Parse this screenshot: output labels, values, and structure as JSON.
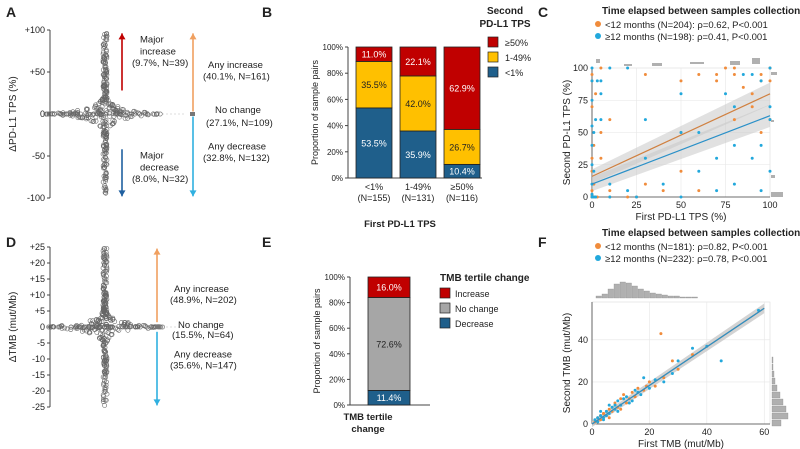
{
  "colors": {
    "red": "#c00000",
    "yellow": "#ffc000",
    "blue": "#1f5f8b",
    "gray": "#a6a6a6",
    "orange": "#f08c3c",
    "cyan": "#22a8dc",
    "dark_red_arrow": "#c00000",
    "orange_arrow": "#f0a060",
    "cyan_arrow": "#30b0e0",
    "dark_blue_arrow": "#2060a0",
    "band": "#c8c8c8"
  },
  "chart_data": [
    {
      "panel": "A",
      "type": "scatter",
      "subtype": "beeswarm",
      "ylabel": "ΔPD-L1 TPS (%)",
      "yticks": [
        "+100",
        "+50",
        "0",
        "-50",
        "-100"
      ],
      "ylim": [
        -100,
        100
      ],
      "annotations": [
        {
          "text": "Major increase",
          "detail": "(9.7%, N=39)",
          "range": [
            20,
            100
          ],
          "arrow": "dark_red_arrow"
        },
        {
          "text": "Major decrease",
          "detail": "(8.0%, N=32)",
          "range": [
            -100,
            -40
          ],
          "arrow": "dark_blue_arrow"
        },
        {
          "text": "Any increase",
          "detail": "(40.1%, N=161)",
          "range": [
            1,
            100
          ],
          "arrow": "orange_arrow"
        },
        {
          "text": "No change",
          "detail": "(27.1%, N=109)",
          "value": 0
        },
        {
          "text": "Any decrease",
          "detail": "(32.8%, N=132)",
          "range": [
            -100,
            -1
          ],
          "arrow": "cyan_arrow"
        }
      ]
    },
    {
      "panel": "B",
      "type": "bar",
      "stacked": true,
      "xlabel": "First PD-L1 TPS",
      "ylabel": "Proportion of sample pairs",
      "yticks": [
        "0%",
        "20%",
        "40%",
        "60%",
        "80%",
        "100%"
      ],
      "ylim": [
        0,
        100
      ],
      "categories": [
        "<1%",
        "1-49%",
        "≥50%"
      ],
      "category_n": [
        "(N=155)",
        "(N=131)",
        "(N=116)"
      ],
      "legend_title": "Second PD-L1 TPS",
      "series": [
        {
          "name": "<1%",
          "color": "blue",
          "values": [
            53.5,
            35.9,
            10.4
          ],
          "labels": [
            "53.5%",
            "35.9%",
            "10.4%"
          ]
        },
        {
          "name": "1-49%",
          "color": "yellow",
          "values": [
            35.5,
            42.0,
            26.7
          ],
          "labels": [
            "35.5%",
            "42.0%",
            "26.7%"
          ]
        },
        {
          "name": "≥50%",
          "color": "red",
          "values": [
            11.0,
            22.1,
            62.9
          ],
          "labels": [
            "11.0%",
            "22.1%",
            "62.9%"
          ]
        }
      ]
    },
    {
      "panel": "C",
      "type": "scatter",
      "title": "Time elapsed between samples collection",
      "xlabel": "First PD-L1 TPS (%)",
      "ylabel": "Second PD-L1 TPS (%)",
      "xticks": [
        "0",
        "25",
        "50",
        "75",
        "100"
      ],
      "yticks": [
        "0",
        "25",
        "50",
        "75",
        "100"
      ],
      "xlim": [
        0,
        100
      ],
      "ylim": [
        0,
        100
      ],
      "grid": true,
      "series": [
        {
          "name": "<12 months (N=204): ρ=0.62, P<0.001",
          "color": "orange",
          "fit": [
            [
              0,
              16
            ],
            [
              100,
              80
            ]
          ],
          "x": [
            0,
            0,
            0,
            1,
            2,
            1,
            0,
            5,
            5,
            10,
            10,
            20,
            25,
            30,
            40,
            50,
            50,
            60,
            70,
            80,
            80,
            90,
            95,
            95,
            100,
            100,
            100,
            0,
            0,
            5,
            2,
            60,
            75,
            85,
            90,
            1,
            0,
            3,
            0,
            10,
            30,
            70,
            95,
            100,
            50,
            80,
            0,
            0
          ],
          "y": [
            0,
            1,
            5,
            0,
            0,
            10,
            20,
            30,
            50,
            5,
            0,
            0,
            0,
            10,
            5,
            20,
            50,
            5,
            90,
            60,
            95,
            80,
            90,
            95,
            100,
            90,
            60,
            70,
            95,
            100,
            80,
            95,
            100,
            85,
            70,
            40,
            2,
            0,
            90,
            60,
            95,
            95,
            50,
            100,
            90,
            100,
            30,
            0
          ]
        },
        {
          "name": "≥12 months (N=198): ρ=0.41, P<0.001",
          "color": "cyan",
          "fit": [
            [
              0,
              10
            ],
            [
              100,
              63
            ]
          ],
          "x": [
            0,
            0,
            0,
            1,
            2,
            1,
            0,
            5,
            5,
            10,
            10,
            20,
            25,
            30,
            40,
            50,
            50,
            60,
            70,
            80,
            80,
            90,
            95,
            95,
            100,
            100,
            100,
            0,
            0,
            5,
            2,
            60,
            75,
            85,
            90,
            1,
            0,
            3,
            0,
            10,
            30,
            70,
            95,
            100,
            50,
            80,
            0,
            20
          ],
          "y": [
            0,
            2,
            10,
            0,
            0,
            20,
            40,
            60,
            80,
            10,
            0,
            5,
            0,
            30,
            10,
            50,
            80,
            20,
            30,
            70,
            10,
            95,
            40,
            5,
            100,
            70,
            20,
            100,
            90,
            90,
            60,
            50,
            80,
            95,
            30,
            50,
            25,
            90,
            75,
            100,
            60,
            5,
            90,
            60,
            0,
            40,
            55,
            100
          ]
        }
      ]
    },
    {
      "panel": "D",
      "type": "scatter",
      "subtype": "beeswarm",
      "ylabel": "ΔTMB (mut/Mb)",
      "yticks": [
        "+25",
        "+20",
        "+15",
        "+10",
        "+5",
        "0",
        "-5",
        "-10",
        "-15",
        "-20",
        "-25"
      ],
      "ylim": [
        -25,
        25
      ],
      "annotations": [
        {
          "text": "Any increase",
          "detail": "(48.9%, N=202)",
          "range": [
            1,
            25
          ],
          "arrow": "orange_arrow"
        },
        {
          "text": "No change",
          "detail": "(15.5%, N=64)",
          "value": 0
        },
        {
          "text": "Any decrease",
          "detail": "(35.6%, N=147)",
          "range": [
            -25,
            -1
          ],
          "arrow": "cyan_arrow"
        }
      ]
    },
    {
      "panel": "E",
      "type": "bar",
      "stacked": true,
      "xlabel": "TMB tertile change",
      "ylabel": "Proportion of sample pairs",
      "yticks": [
        "0%",
        "20%",
        "40%",
        "60%",
        "80%",
        "100%"
      ],
      "ylim": [
        0,
        100
      ],
      "legend_title": "TMB tertile change",
      "series": [
        {
          "name": "Decrease",
          "color": "blue",
          "values": [
            11.4
          ],
          "labels": [
            "11.4%"
          ]
        },
        {
          "name": "No change",
          "color": "gray",
          "values": [
            72.6
          ],
          "labels": [
            "72.6%"
          ]
        },
        {
          "name": "Increase",
          "color": "red",
          "values": [
            16.0
          ],
          "labels": [
            "16.0%"
          ]
        }
      ]
    },
    {
      "panel": "F",
      "type": "scatter",
      "title": "Time elapsed between samples collection",
      "xlabel": "First TMB (mut/Mb)",
      "ylabel": "Second TMB (mut/Mb)",
      "xticks": [
        "0",
        "20",
        "40",
        "60"
      ],
      "yticks": [
        "0",
        "20",
        "40"
      ],
      "xlim": [
        0,
        62
      ],
      "ylim": [
        0,
        58
      ],
      "grid": true,
      "series": [
        {
          "name": "<12 months (N=181): ρ=0.82, P<0.001",
          "color": "orange",
          "fit": [
            [
              0,
              0
            ],
            [
              60,
              55
            ]
          ],
          "x": [
            1,
            2,
            3,
            4,
            5,
            6,
            7,
            8,
            9,
            10,
            12,
            14,
            15,
            18,
            20,
            22,
            25,
            28,
            30,
            35,
            2,
            3,
            5,
            6,
            8,
            10,
            4,
            7,
            11,
            13,
            16,
            19,
            24
          ],
          "y": [
            1,
            3,
            2,
            5,
            4,
            7,
            6,
            9,
            8,
            12,
            10,
            15,
            13,
            16,
            20,
            18,
            22,
            30,
            26,
            33,
            1,
            4,
            6,
            3,
            10,
            7,
            5,
            8,
            14,
            12,
            17,
            18,
            43
          ]
        },
        {
          "name": "≥12 months (N=232): ρ=0.78, P<0.001",
          "color": "cyan",
          "fit": [
            [
              0,
              0
            ],
            [
              60,
              55
            ]
          ],
          "x": [
            1,
            2,
            3,
            4,
            5,
            6,
            7,
            8,
            9,
            10,
            12,
            14,
            15,
            17,
            20,
            22,
            25,
            28,
            30,
            40,
            3,
            4,
            6,
            9,
            11,
            13,
            2,
            5,
            8,
            16,
            18,
            35,
            45,
            58
          ],
          "y": [
            2,
            1,
            4,
            3,
            6,
            5,
            8,
            7,
            11,
            9,
            13,
            11,
            16,
            14,
            17,
            21,
            20,
            24,
            30,
            37,
            6,
            2,
            9,
            6,
            12,
            10,
            3,
            4,
            9,
            15,
            22,
            36,
            30,
            54
          ]
        }
      ]
    }
  ],
  "panel_labels": [
    "A",
    "B",
    "C",
    "D",
    "E",
    "F"
  ]
}
